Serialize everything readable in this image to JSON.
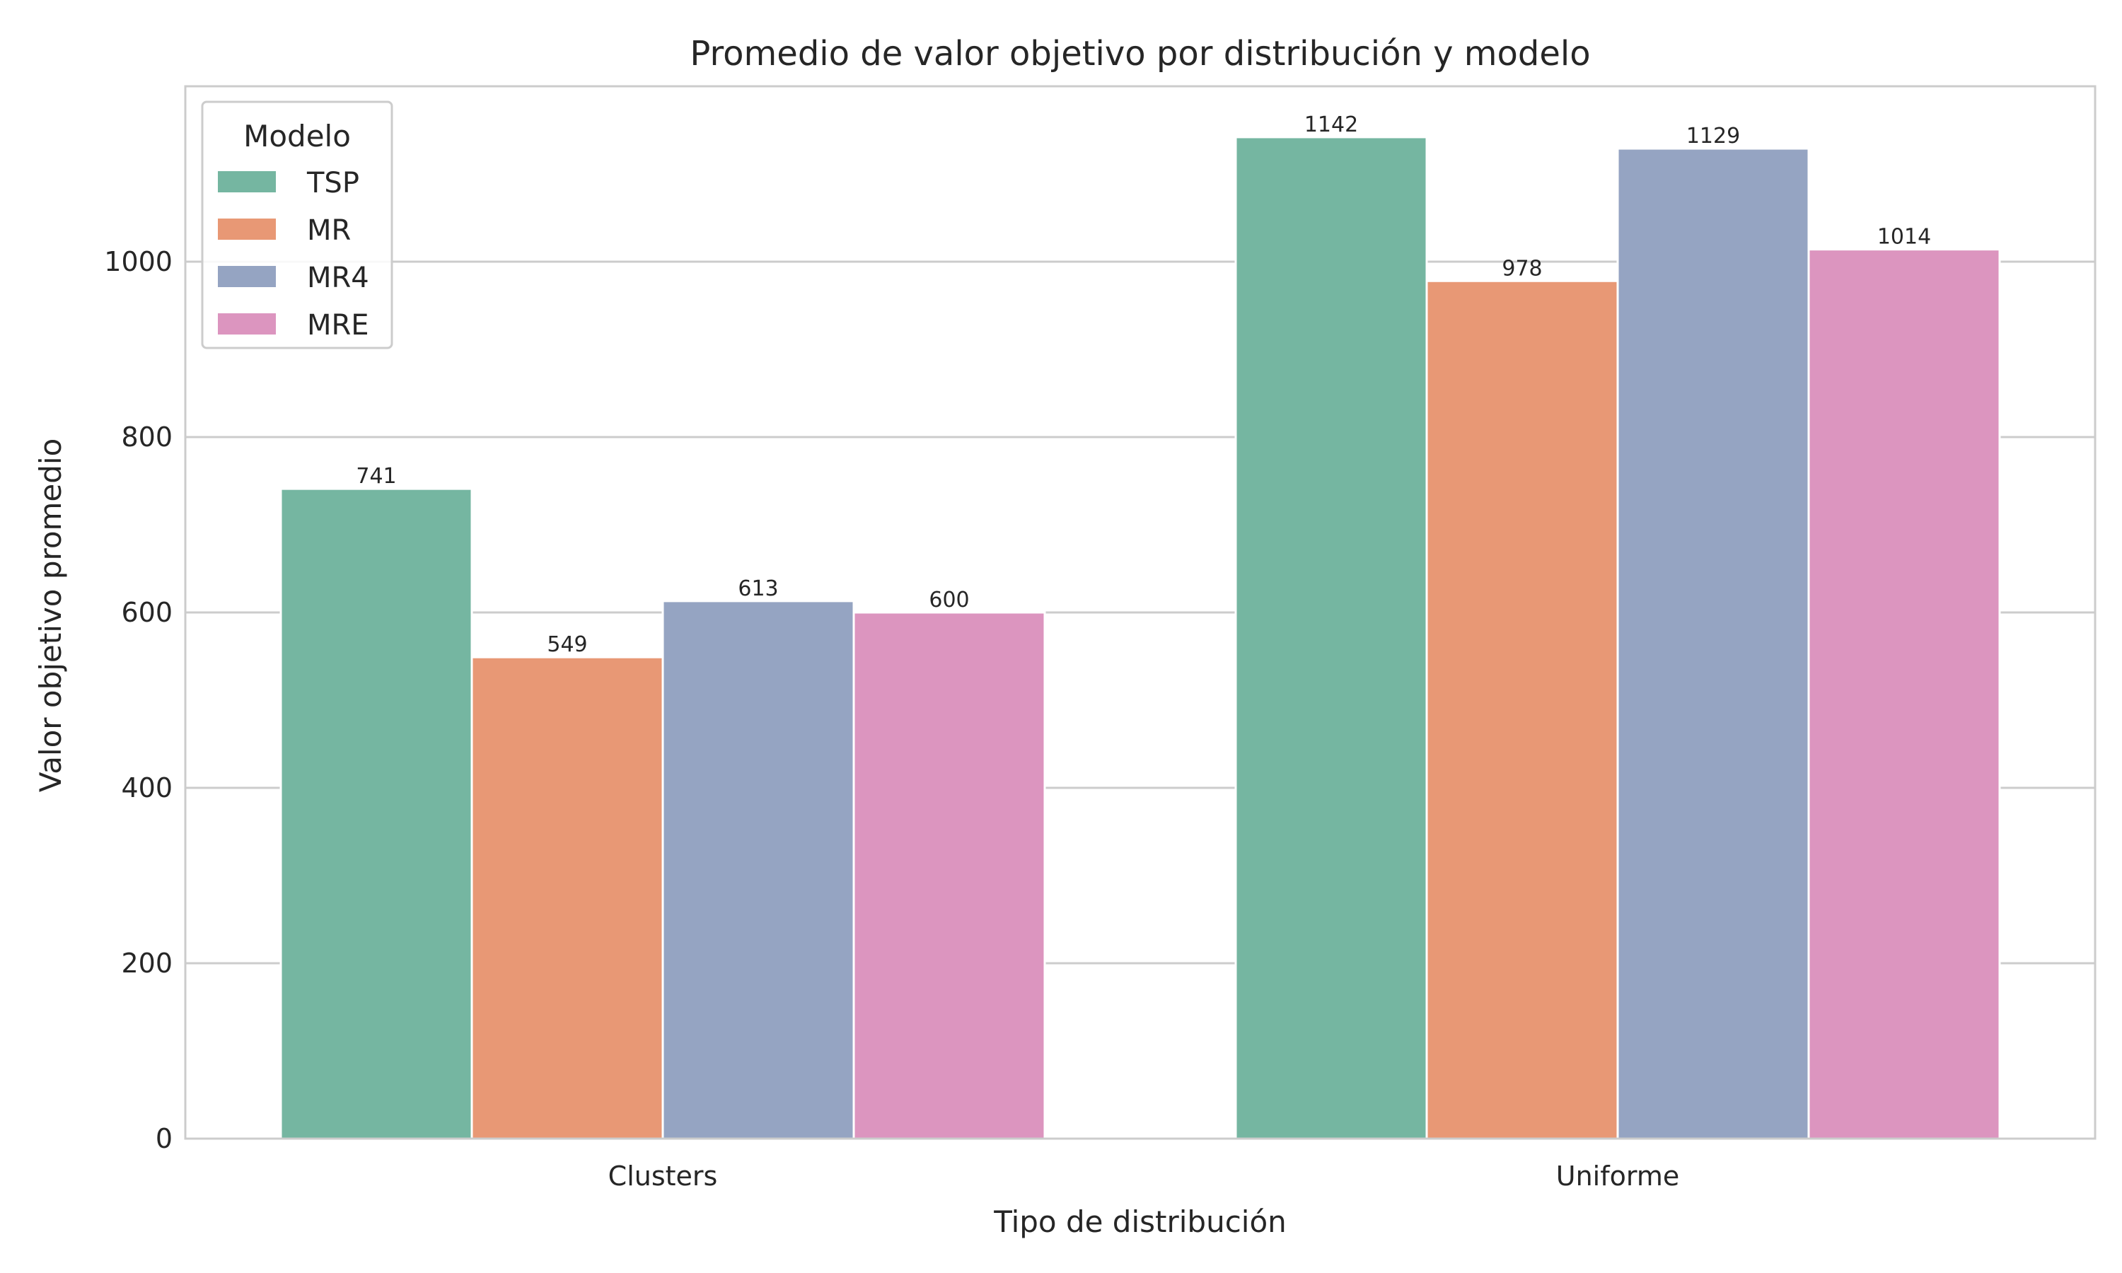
{
  "chart_data": {
    "type": "bar",
    "title": "Promedio de valor objetivo por distribución y modelo",
    "xlabel": "Tipo de distribución",
    "ylabel": "Valor objetivo promedio",
    "categories": [
      "Clusters",
      "Uniforme"
    ],
    "series": [
      {
        "name": "TSP",
        "values": [
          741,
          1142
        ],
        "color": "#75b6a1"
      },
      {
        "name": "MR",
        "values": [
          549,
          978
        ],
        "color": "#e89875"
      },
      {
        "name": "MR4",
        "values": [
          613,
          1129
        ],
        "color": "#95a4c2"
      },
      {
        "name": "MRE",
        "values": [
          600,
          1014
        ],
        "color": "#dc95bf"
      }
    ],
    "data_labels": [
      [
        "741",
        "1142"
      ],
      [
        "549",
        "978"
      ],
      [
        "613",
        "1129"
      ],
      [
        "600",
        "1014"
      ]
    ],
    "yticks": [
      0,
      200,
      400,
      600,
      800,
      1000
    ],
    "ylim": [
      0,
      1200
    ],
    "grid": "horizontal",
    "legend": {
      "title": "Modelo",
      "position": "top-left"
    }
  }
}
